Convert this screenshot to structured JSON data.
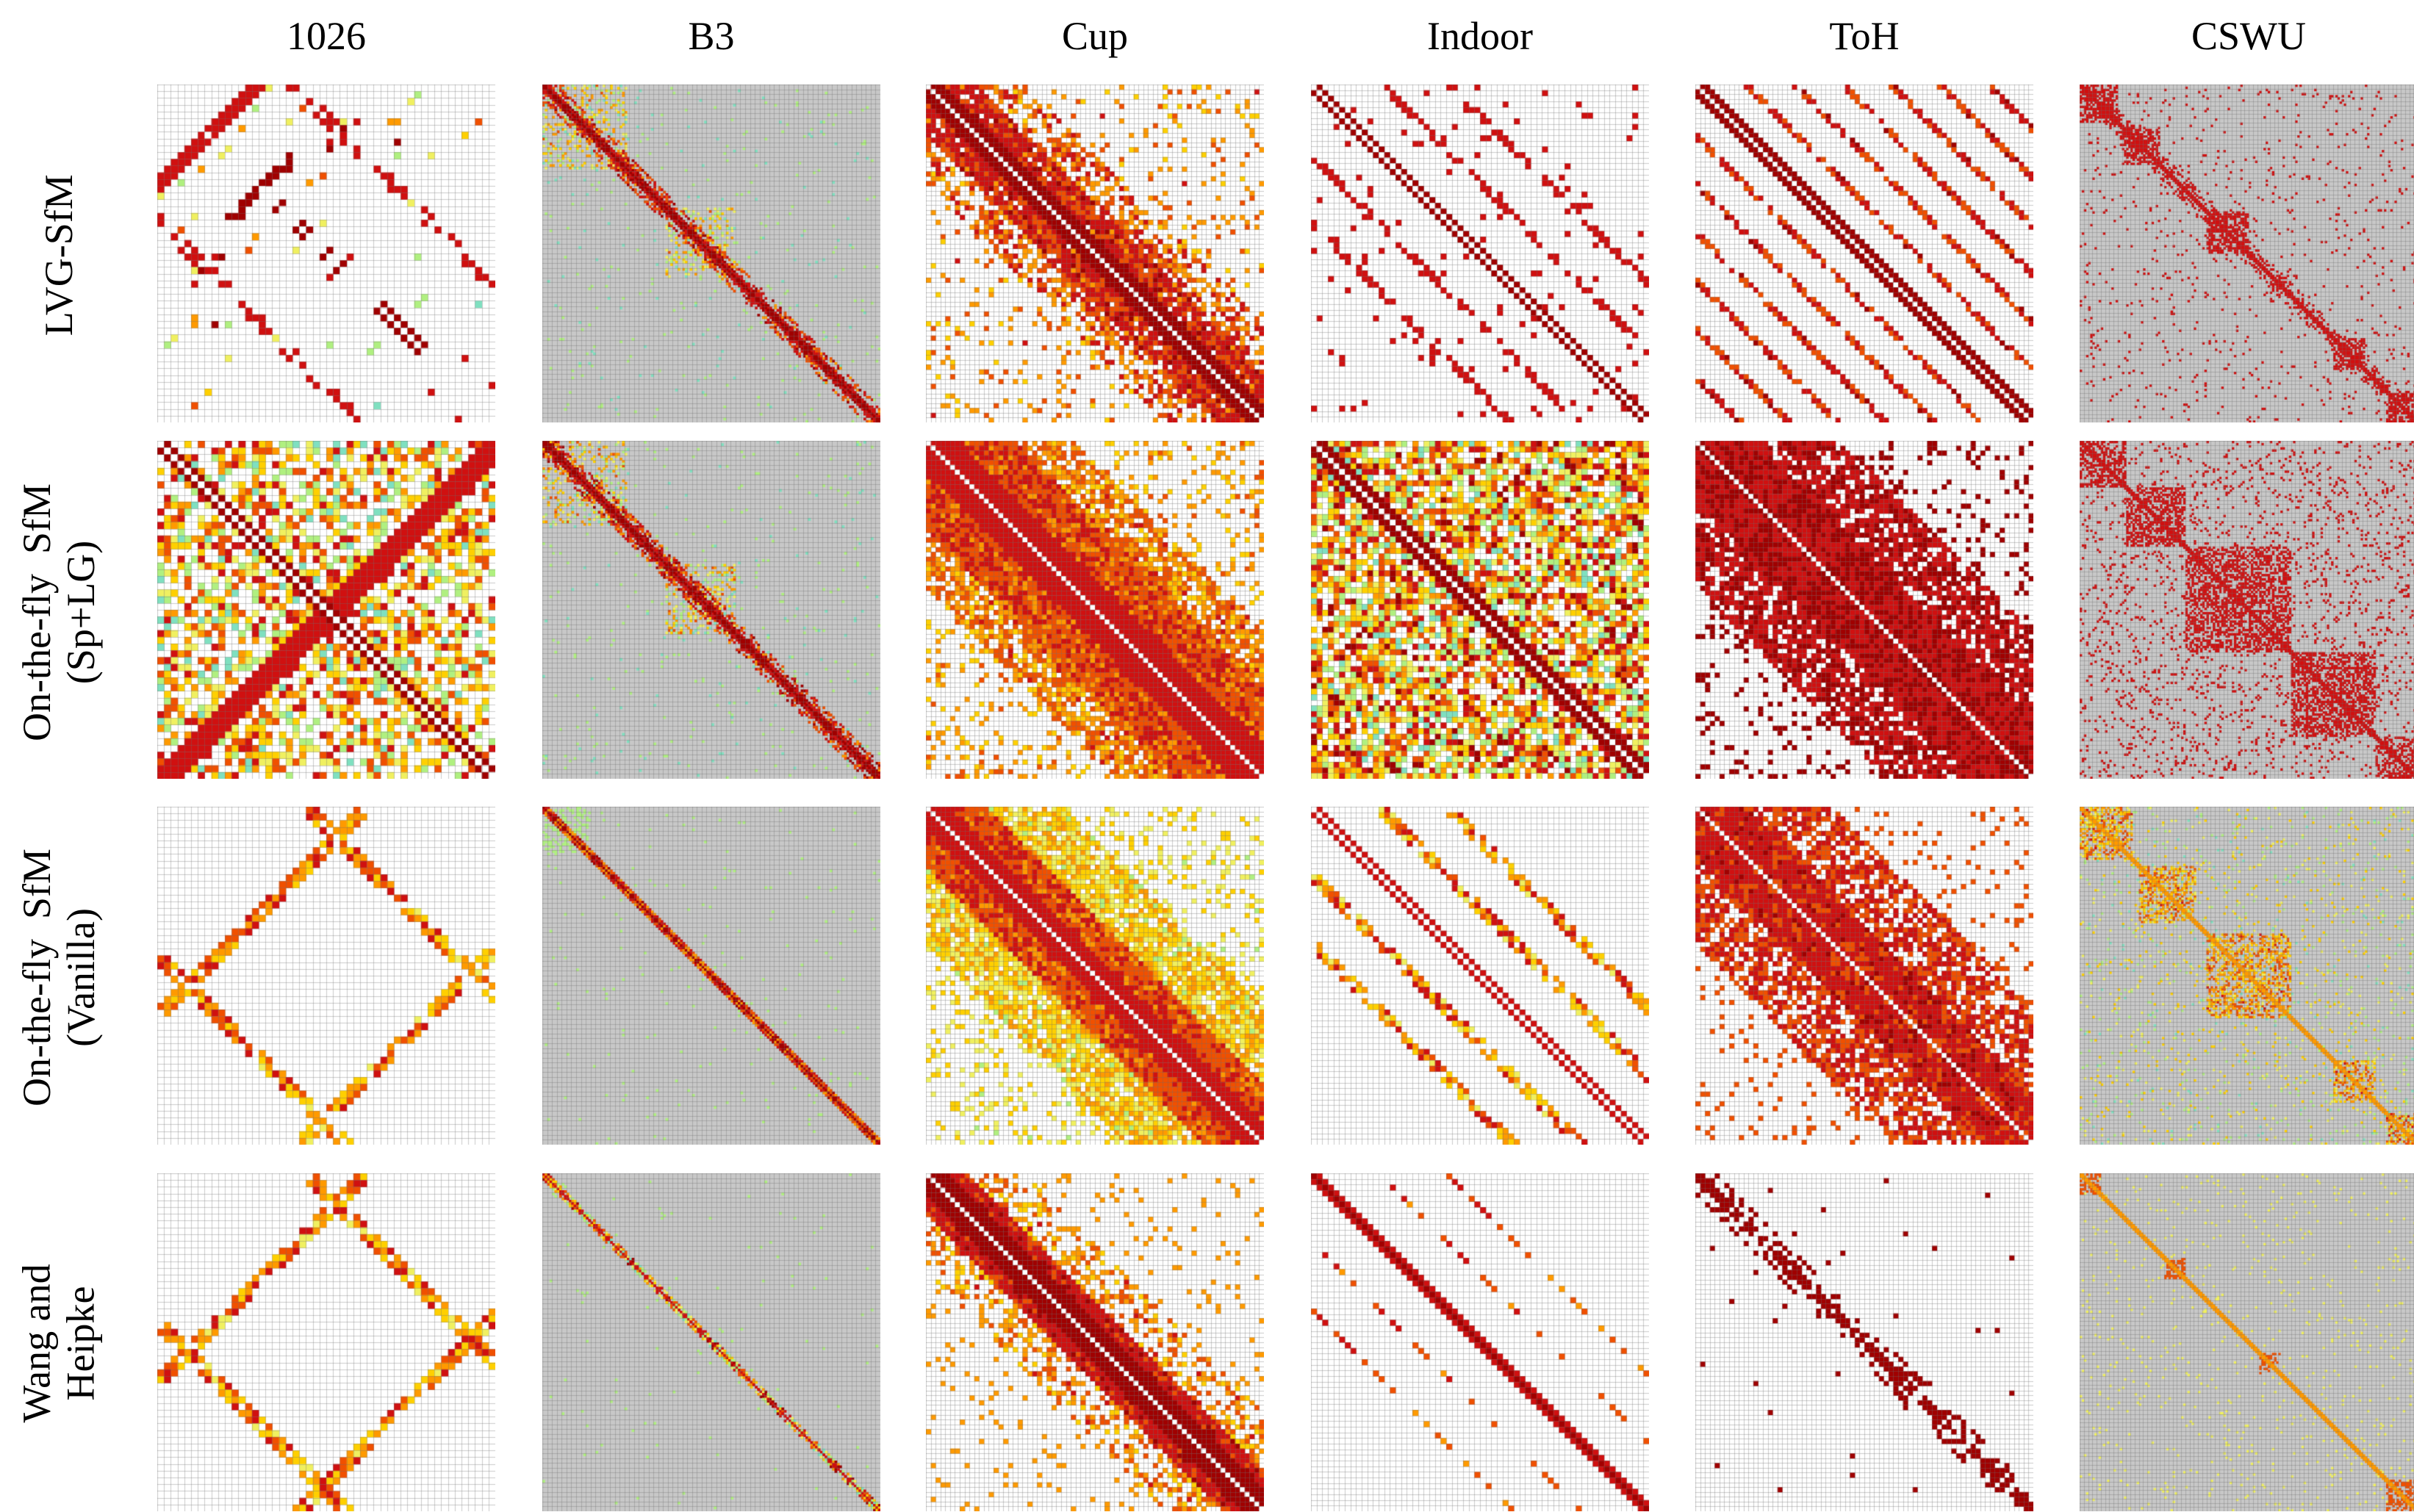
{
  "columns": [
    {
      "key": "c1026",
      "label": "1026",
      "n": 50,
      "bg": "#ffffff"
    },
    {
      "key": "b3",
      "label": "B3",
      "n": 140,
      "bg": "#c8c8c8"
    },
    {
      "key": "cup",
      "label": "Cup",
      "n": 70,
      "bg": "#ffffff"
    },
    {
      "key": "indoor",
      "label": "Indoor",
      "n": 60,
      "bg": "#ffffff"
    },
    {
      "key": "toh",
      "label": "ToH",
      "n": 70,
      "bg": "#ffffff"
    },
    {
      "key": "cswu",
      "label": "CSWU",
      "n": 160,
      "bg": "#c8c8c8"
    }
  ],
  "rows": [
    {
      "key": "lvg",
      "lines": [
        "LVG-SfM"
      ]
    },
    {
      "key": "onthefly_splg",
      "lines": [
        "On-the-fly  SfM",
        "(Sp+LG)"
      ]
    },
    {
      "key": "onthefly_vanilla",
      "lines": [
        "On-the-fly  SfM",
        "(Vanilla)"
      ]
    },
    {
      "key": "wang",
      "lines": [
        "Wang and",
        "Heipke"
      ]
    }
  ],
  "colormap": [
    "#ffffff",
    "#7fe0c0",
    "#b0f080",
    "#f0f060",
    "#ffd000",
    "#ff9a00",
    "#f05000",
    "#d01010",
    "#a00000"
  ],
  "diagonal_color": "#ffffff"
}
